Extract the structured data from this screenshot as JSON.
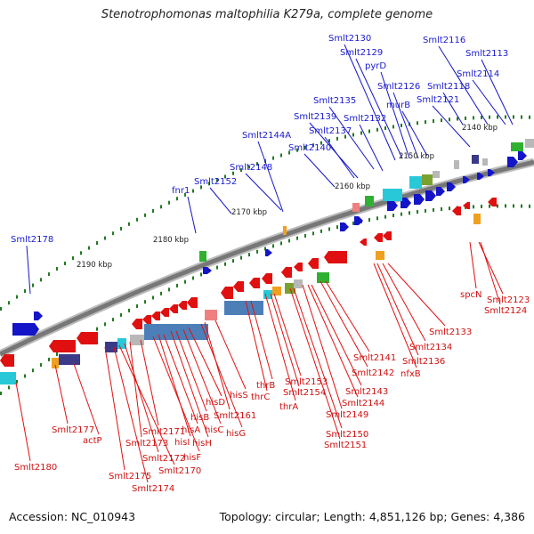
{
  "title": "Stenotrophomonas maltophilia K279a, complete genome",
  "accession": "Accession: NC_010943",
  "topology": "Topology: circular; Length: 4,851,126 bp; Genes: 4,386",
  "colors": {
    "forward_gene": "#1414c8",
    "reverse_gene": "#e01010",
    "backbone": "#777777",
    "ticks": "#1f7a1f",
    "orange": "#f0a020",
    "green": "#30b030",
    "cyan": "#28c8d8",
    "gray": "#b8b8b8",
    "steelblue": "#4c7fb8",
    "navy": "#3a3a88",
    "pink": "#f08080"
  },
  "kbp_marks": [
    "2140 kbp",
    "2150 kbp",
    "2160 kbp",
    "2170 kbp",
    "2180 kbp",
    "2190 kbp"
  ],
  "labels_top": [
    "Smlt2130",
    "Smlt2129",
    "pyrD",
    "Smlt2116",
    "Smlt2113",
    "Smlt2114",
    "Smlt2126",
    "Smlt2118",
    "murB",
    "Smlt2121",
    "Smlt2135",
    "Smlt2139",
    "Smlt2132",
    "Smlt2137",
    "Smlt2144A",
    "Smlt2140",
    "Smlt2148",
    "Smlt2152",
    "fnr1",
    "Smlt2178"
  ],
  "labels_bottom": [
    "spcN",
    "Smlt2123",
    "Smlt2124",
    "Smlt2133",
    "Smlt2134",
    "Smlt2136",
    "nfxB",
    "Smlt2141",
    "Smlt2142",
    "Smlt2143",
    "Smlt2144",
    "Smlt2149",
    "Smlt2150",
    "Smlt2151",
    "Smlt2153",
    "Smlt2154",
    "thrA",
    "thrB",
    "thrC",
    "hisS",
    "Smlt2161",
    "hisG",
    "hisD",
    "hisC",
    "hisB",
    "hisH",
    "hisA",
    "hisI",
    "hisF",
    "Smlt2171",
    "Smlt2173",
    "Smlt2172",
    "Smlt2170",
    "Smlt2175",
    "Smlt2174",
    "Smlt2177",
    "actP",
    "Smlt2180"
  ]
}
